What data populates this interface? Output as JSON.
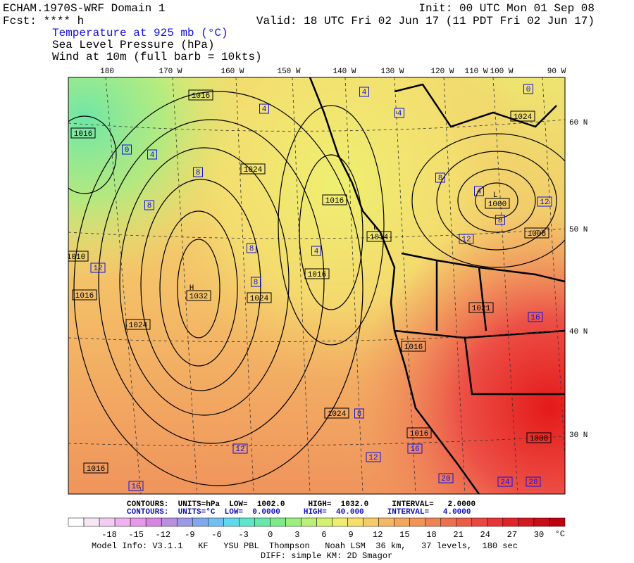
{
  "header": {
    "model": "ECHAM.1970S-WRF Domain 1",
    "fcst": "Fcst: **** h",
    "init": "Init: 00 UTC Mon 01 Sep 08",
    "valid": "Valid: 18 UTC Fri 02 Jun 17 (11 PDT Fri 02 Jun 17)",
    "field1": "Temperature at 925 mb (°C)",
    "field2": "Sea Level Pressure (hPa)",
    "field3": "Wind at 10m (full barb = 10kts)"
  },
  "map": {
    "lon_labels": [
      "180",
      "170 W",
      "160 W",
      "150 W",
      "140 W",
      "130 W",
      "120 W",
      "110 W",
      "100 W",
      "90 W"
    ],
    "lat_labels": [
      "60 N",
      "50 N",
      "40 N",
      "30 N"
    ],
    "pressure_labels": [
      "1016",
      "1016",
      "1024",
      "1016",
      "1014",
      "1000",
      "1008",
      "1024",
      "H",
      "1032",
      "1024",
      "1024",
      "1016",
      "1016",
      "1021",
      "1016",
      "1016",
      "1024",
      "1016",
      "1008",
      "L",
      "L",
      "1010"
    ],
    "temp_labels": [
      "4",
      "4",
      "0",
      "0",
      "4",
      "8",
      "8",
      "8",
      "4",
      "12",
      "8",
      "12",
      "8",
      "4",
      "8",
      "12",
      "16",
      "12",
      "12",
      "16",
      "16",
      "20",
      "24",
      "28",
      "8",
      "4"
    ]
  },
  "footer": {
    "contours1": "CONTOURS:  UNITS=hPa  LOW=  1002.0     HIGH=  1032.0     INTERVAL=   2.0000",
    "contours2": "CONTOURS:  UNITS=°C  LOW=  0.0000     HIGH=  40.000     INTERVAL=   4.0000",
    "model_info": "Model Info: V3.1.1   KF   YSU PBL  Thompson   Noah LSM  36 km,   37 levels,  180 sec",
    "diff": "DIFF: simple KM: 2D Smagor"
  },
  "colorbar": {
    "unit": "°C",
    "ticks": [
      -18,
      -15,
      -12,
      -9,
      -6,
      -3,
      0,
      3,
      6,
      9,
      12,
      15,
      18,
      21,
      24,
      27,
      30
    ],
    "colors": [
      "#ffffff",
      "#f6e6f6",
      "#f2ccf2",
      "#eeb2ee",
      "#e699ea",
      "#d685e0",
      "#b890e0",
      "#9a9ae8",
      "#7fa8ee",
      "#70c0f2",
      "#60d8ee",
      "#5ee6cc",
      "#66e8a8",
      "#7eea8a",
      "#9cee80",
      "#baf078",
      "#d6f070",
      "#eeee70",
      "#f6de6a",
      "#f6cc66",
      "#f4b862",
      "#f2a65e",
      "#f0945a",
      "#ee8256",
      "#ec7050",
      "#ea5c48",
      "#e84840",
      "#e63438",
      "#e02428",
      "#d41820",
      "#c80c18",
      "#bc0010"
    ]
  }
}
